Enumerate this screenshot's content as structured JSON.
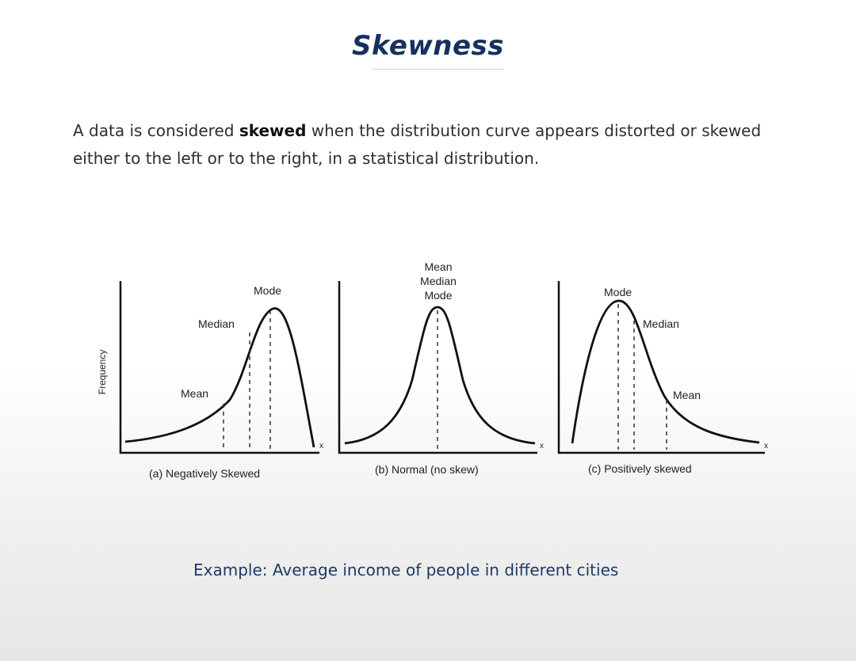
{
  "slide": {
    "title": "Skewness",
    "description": {
      "pre": "A data is considered ",
      "bold": "skewed",
      "post": " when the distribution curve appears distorted or skewed either to the left or to the right, in a statistical distribution."
    },
    "example": "Example:  Average income of people in different cities"
  },
  "diagram": {
    "y_axis_label": "Frequency",
    "x_axis_label": "x",
    "panels": [
      {
        "caption": "(a) Negatively Skewed",
        "labels": {
          "mode": "Mode",
          "median": "Median",
          "mean": "Mean"
        }
      },
      {
        "caption": "(b) Normal (no skew)",
        "labels": {
          "mean": "Mean",
          "median": "Median",
          "mode": "Mode"
        }
      },
      {
        "caption": "(c) Positively skewed",
        "labels": {
          "mode": "Mode",
          "median": "Median",
          "mean": "Mean"
        }
      }
    ]
  },
  "colors": {
    "title": "#16315f",
    "example": "#1f3a68",
    "text": "#2e2e2e",
    "curve": "#111111"
  }
}
